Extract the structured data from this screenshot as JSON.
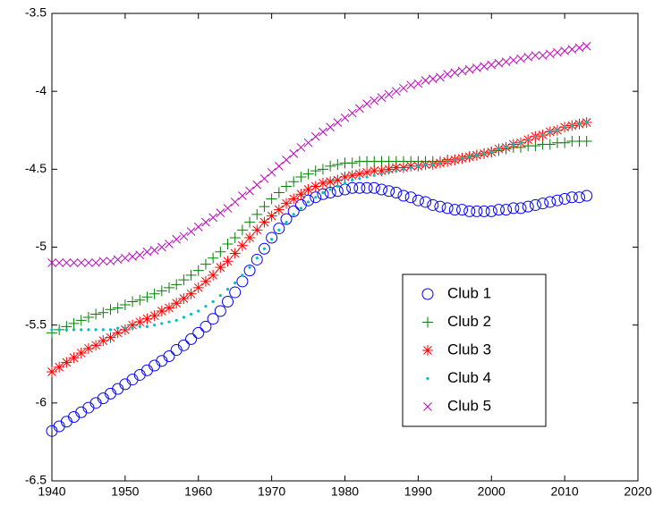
{
  "chart_data": {
    "type": "scatter",
    "x": [
      1940,
      1941,
      1942,
      1943,
      1944,
      1945,
      1946,
      1947,
      1948,
      1949,
      1950,
      1951,
      1952,
      1953,
      1954,
      1955,
      1956,
      1957,
      1958,
      1959,
      1960,
      1961,
      1962,
      1963,
      1964,
      1965,
      1966,
      1967,
      1968,
      1969,
      1970,
      1971,
      1972,
      1973,
      1974,
      1975,
      1976,
      1977,
      1978,
      1979,
      1980,
      1981,
      1982,
      1983,
      1984,
      1985,
      1986,
      1987,
      1988,
      1989,
      1990,
      1991,
      1992,
      1993,
      1994,
      1995,
      1996,
      1997,
      1998,
      1999,
      2000,
      2001,
      2002,
      2003,
      2004,
      2005,
      2006,
      2007,
      2008,
      2009,
      2010,
      2011,
      2012,
      2013
    ],
    "xlim": [
      1940,
      2020
    ],
    "xticks": [
      1940,
      1950,
      1960,
      1970,
      1980,
      1990,
      2000,
      2010,
      2020
    ],
    "ylim": [
      -6.5,
      -3.5
    ],
    "yticks": [
      -6.5,
      -6,
      -5.5,
      -5,
      -4.5,
      -4,
      -3.5
    ],
    "grid": false,
    "legend": "southeast",
    "series": [
      {
        "name": "Club 1",
        "color": "#0000ff",
        "marker": "o",
        "values": [
          -6.18,
          -6.15,
          -6.12,
          -6.09,
          -6.06,
          -6.03,
          -6.0,
          -5.97,
          -5.94,
          -5.91,
          -5.88,
          -5.85,
          -5.82,
          -5.79,
          -5.76,
          -5.73,
          -5.7,
          -5.66,
          -5.63,
          -5.59,
          -5.55,
          -5.51,
          -5.46,
          -5.41,
          -5.35,
          -5.29,
          -5.22,
          -5.15,
          -5.08,
          -5.01,
          -4.94,
          -4.88,
          -4.82,
          -4.77,
          -4.73,
          -4.7,
          -4.68,
          -4.66,
          -4.65,
          -4.64,
          -4.63,
          -4.62,
          -4.62,
          -4.62,
          -4.62,
          -4.63,
          -4.64,
          -4.65,
          -4.67,
          -4.68,
          -4.7,
          -4.71,
          -4.73,
          -4.74,
          -4.75,
          -4.76,
          -4.76,
          -4.77,
          -4.77,
          -4.77,
          -4.77,
          -4.76,
          -4.76,
          -4.75,
          -4.75,
          -4.74,
          -4.73,
          -4.72,
          -4.71,
          -4.7,
          -4.69,
          -4.68,
          -4.68,
          -4.67
        ]
      },
      {
        "name": "Club 2",
        "color": "#008000",
        "marker": "+",
        "values": [
          -5.55,
          -5.53,
          -5.51,
          -5.49,
          -5.47,
          -5.45,
          -5.43,
          -5.42,
          -5.4,
          -5.39,
          -5.37,
          -5.35,
          -5.34,
          -5.32,
          -5.3,
          -5.28,
          -5.26,
          -5.24,
          -5.21,
          -5.18,
          -5.15,
          -5.11,
          -5.07,
          -5.03,
          -4.98,
          -4.94,
          -4.89,
          -4.84,
          -4.79,
          -4.74,
          -4.69,
          -4.65,
          -4.61,
          -4.58,
          -4.55,
          -4.53,
          -4.51,
          -4.5,
          -4.48,
          -4.47,
          -4.46,
          -4.46,
          -4.45,
          -4.45,
          -4.45,
          -4.45,
          -4.45,
          -4.45,
          -4.45,
          -4.45,
          -4.45,
          -4.45,
          -4.45,
          -4.45,
          -4.44,
          -4.44,
          -4.43,
          -4.42,
          -4.41,
          -4.4,
          -4.39,
          -4.38,
          -4.37,
          -4.36,
          -4.36,
          -4.35,
          -4.35,
          -4.34,
          -4.34,
          -4.33,
          -4.33,
          -4.32,
          -4.32,
          -4.32
        ]
      },
      {
        "name": "Club 3",
        "color": "#ff0000",
        "marker": "*",
        "values": [
          -5.8,
          -5.77,
          -5.74,
          -5.71,
          -5.68,
          -5.65,
          -5.63,
          -5.6,
          -5.58,
          -5.55,
          -5.53,
          -5.5,
          -5.48,
          -5.46,
          -5.44,
          -5.41,
          -5.39,
          -5.36,
          -5.33,
          -5.3,
          -5.26,
          -5.22,
          -5.18,
          -5.13,
          -5.09,
          -5.04,
          -4.99,
          -4.94,
          -4.89,
          -4.84,
          -4.8,
          -4.76,
          -4.72,
          -4.69,
          -4.66,
          -4.63,
          -4.61,
          -4.59,
          -4.58,
          -4.57,
          -4.55,
          -4.54,
          -4.53,
          -4.52,
          -4.51,
          -4.51,
          -4.5,
          -4.49,
          -4.49,
          -4.48,
          -4.48,
          -4.47,
          -4.47,
          -4.46,
          -4.45,
          -4.44,
          -4.43,
          -4.42,
          -4.41,
          -4.4,
          -4.39,
          -4.37,
          -4.36,
          -4.34,
          -4.33,
          -4.31,
          -4.29,
          -4.28,
          -4.26,
          -4.25,
          -4.23,
          -4.22,
          -4.21,
          -4.2
        ]
      },
      {
        "name": "Club 4",
        "color": "#00bfbf",
        "marker": ".",
        "values": [
          -5.53,
          -5.53,
          -5.53,
          -5.53,
          -5.53,
          -5.53,
          -5.53,
          -5.53,
          -5.53,
          -5.52,
          -5.52,
          -5.52,
          -5.51,
          -5.51,
          -5.5,
          -5.49,
          -5.48,
          -5.47,
          -5.45,
          -5.43,
          -5.41,
          -5.38,
          -5.35,
          -5.31,
          -5.27,
          -5.23,
          -5.18,
          -5.13,
          -5.07,
          -5.01,
          -4.95,
          -4.89,
          -4.84,
          -4.79,
          -4.75,
          -4.71,
          -4.68,
          -4.65,
          -4.63,
          -4.61,
          -4.59,
          -4.57,
          -4.56,
          -4.55,
          -4.54,
          -4.53,
          -4.52,
          -4.51,
          -4.5,
          -4.49,
          -4.48,
          -4.47,
          -4.47,
          -4.46,
          -4.45,
          -4.44,
          -4.43,
          -4.42,
          -4.41,
          -4.4,
          -4.39,
          -4.37,
          -4.36,
          -4.34,
          -4.33,
          -4.31,
          -4.29,
          -4.28,
          -4.26,
          -4.25,
          -4.23,
          -4.22,
          -4.21,
          -4.2
        ]
      },
      {
        "name": "Club 5",
        "color": "#bf00bf",
        "marker": "x",
        "values": [
          -5.1,
          -5.1,
          -5.1,
          -5.1,
          -5.1,
          -5.1,
          -5.1,
          -5.09,
          -5.09,
          -5.08,
          -5.07,
          -5.06,
          -5.05,
          -5.03,
          -5.02,
          -5.0,
          -4.98,
          -4.95,
          -4.93,
          -4.9,
          -4.87,
          -4.84,
          -4.81,
          -4.78,
          -4.75,
          -4.71,
          -4.67,
          -4.64,
          -4.6,
          -4.56,
          -4.52,
          -4.48,
          -4.44,
          -4.4,
          -4.36,
          -4.33,
          -4.29,
          -4.26,
          -4.23,
          -4.2,
          -4.17,
          -4.14,
          -4.11,
          -4.08,
          -4.06,
          -4.04,
          -4.02,
          -4.0,
          -3.98,
          -3.96,
          -3.95,
          -3.93,
          -3.92,
          -3.91,
          -3.89,
          -3.88,
          -3.87,
          -3.86,
          -3.85,
          -3.84,
          -3.83,
          -3.82,
          -3.81,
          -3.8,
          -3.79,
          -3.78,
          -3.77,
          -3.77,
          -3.76,
          -3.75,
          -3.74,
          -3.73,
          -3.72,
          -3.71
        ]
      }
    ]
  }
}
